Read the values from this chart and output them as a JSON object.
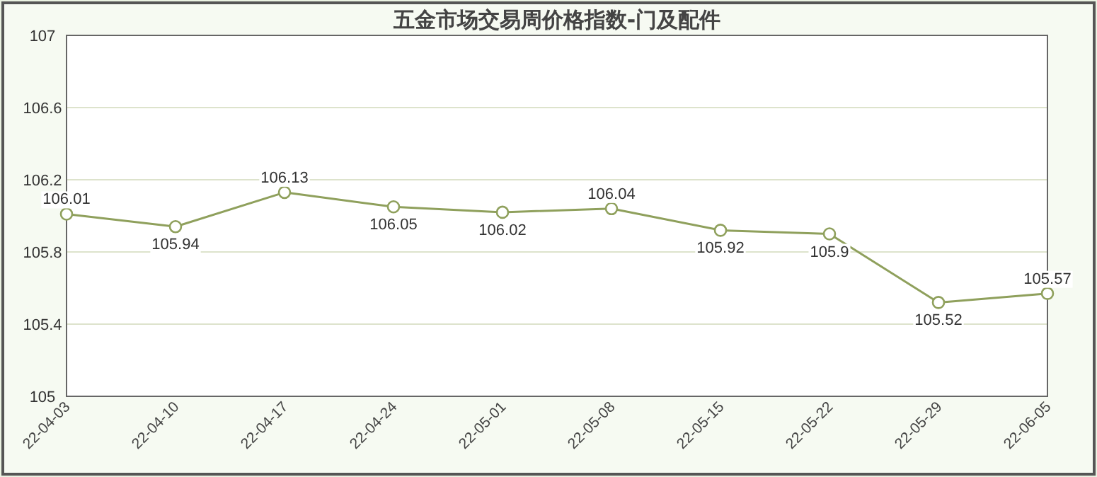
{
  "chart_data": {
    "type": "line",
    "title": "五金市场交易周价格指数-门及配件",
    "categories": [
      "22-04-03",
      "22-04-10",
      "22-04-17",
      "22-04-24",
      "22-05-01",
      "22-05-08",
      "22-05-15",
      "22-05-22",
      "22-05-29",
      "22-06-05"
    ],
    "values": [
      106.01,
      105.94,
      106.13,
      106.05,
      106.02,
      106.04,
      105.92,
      105.9,
      105.52,
      105.57
    ],
    "color": "#8fa05c",
    "ylim": [
      105,
      107
    ],
    "yticks": [
      105,
      105.4,
      105.8,
      106.2,
      106.6,
      107
    ],
    "grid": "y",
    "data_labels": true,
    "marker": "circle",
    "line_style": "solid"
  }
}
